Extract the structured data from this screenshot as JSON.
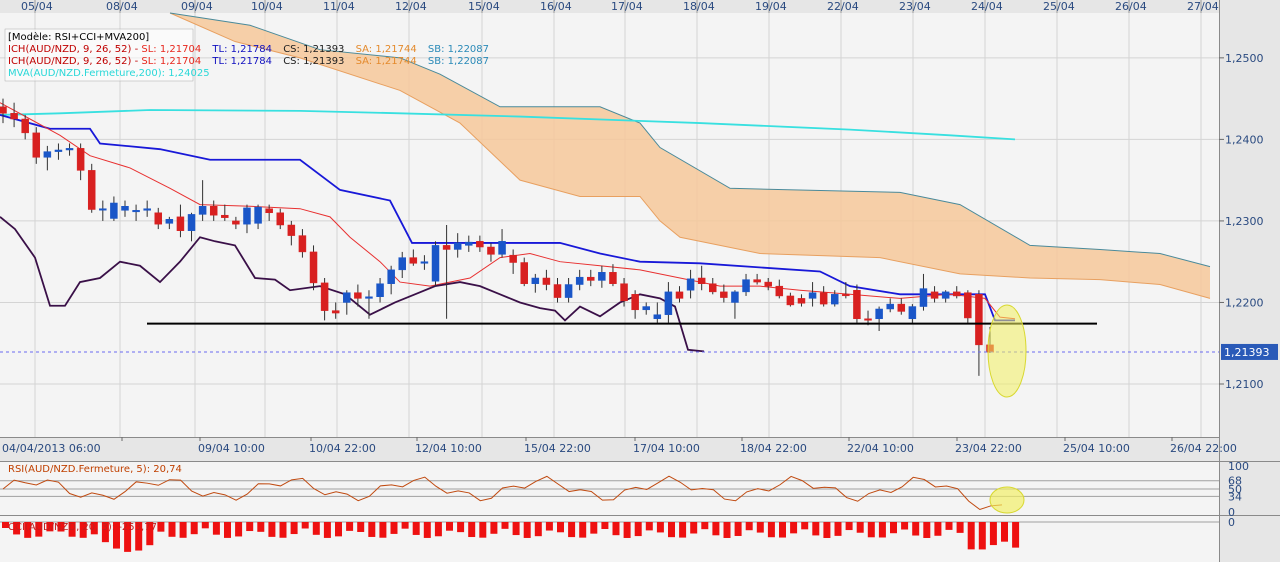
{
  "chart_data": {
    "type": "candlestick",
    "instrument": "AUD/NZD",
    "top_dates": [
      "05/04",
      "08/04",
      "09/04",
      "10/04",
      "11/04",
      "12/04",
      "15/04",
      "16/04",
      "17/04",
      "18/04",
      "19/04",
      "22/04",
      "23/04",
      "24/04",
      "25/04",
      "26/04",
      "27/04"
    ],
    "bottom_dates": [
      "04/04/2013 06:00",
      "09/04 10:00",
      "10/04 22:00",
      "12/04 10:00",
      "15/04 22:00",
      "17/04 10:00",
      "18/04 22:00",
      "22/04 10:00",
      "23/04 22:00",
      "25/04 10:00",
      "26/04 22:00"
    ],
    "price_ticks": [
      "1,2500",
      "1,2400",
      "1,2300",
      "1,2200",
      "1,2100"
    ],
    "price_range": [
      1.2035,
      1.2555
    ],
    "current_price_label": "1,21393",
    "current_price": 1.21393,
    "support_level": 1.2174,
    "legend": {
      "model": "[Modèle: RSI+CCI+MVA200]",
      "ichimoku_1": {
        "name": "ICH(AUD/NZD, 9, 26, 52)",
        "sl": "SL: 1,21704",
        "tl": "TL: 1,21784",
        "cs": "CS: 1,21393",
        "sa": "SA: 1,21744",
        "sb": "SB: 1,22087"
      },
      "ichimoku_2": {
        "name": "ICH(AUD/NZD, 9, 26, 52)",
        "sl": "SL: 1,21704",
        "tl": "TL: 1,21784",
        "cs": "CS: 1,21393",
        "sa": "SA: 1,21744",
        "sb": "SB: 1,22087"
      },
      "mva": "MVA(AUD/NZD.Fermeture,200): 1,24025"
    },
    "rsi": {
      "label": "RSI(AUD/NZD.Fermeture, 5): 20,74",
      "ticks": [
        "100",
        "68",
        "50",
        "34",
        "0"
      ],
      "levels": [
        100,
        68,
        50,
        34,
        0
      ]
    },
    "cci": {
      "label": "CCI(AUD/NZD, 20, 3): -253,77",
      "tick": "0"
    },
    "candles": [
      [
        1.244,
        1.245,
        1.242,
        1.2432
      ],
      [
        1.2432,
        1.2445,
        1.2415,
        1.2425
      ],
      [
        1.2425,
        1.243,
        1.24,
        1.2408
      ],
      [
        1.2408,
        1.2415,
        1.237,
        1.2378
      ],
      [
        1.2378,
        1.2392,
        1.2362,
        1.2385
      ],
      [
        1.2385,
        1.2395,
        1.2375,
        1.2387
      ],
      [
        1.2387,
        1.2395,
        1.238,
        1.2389
      ],
      [
        1.2389,
        1.2395,
        1.235,
        1.2362
      ],
      [
        1.2362,
        1.237,
        1.231,
        1.2314
      ],
      [
        1.2314,
        1.2325,
        1.23,
        1.2315
      ],
      [
        1.2303,
        1.233,
        1.23,
        1.2322
      ],
      [
        1.2313,
        1.2325,
        1.2305,
        1.2318
      ],
      [
        1.2312,
        1.232,
        1.23,
        1.2313
      ],
      [
        1.2313,
        1.2325,
        1.2305,
        1.2315
      ],
      [
        1.231,
        1.2316,
        1.229,
        1.2296
      ],
      [
        1.2297,
        1.2305,
        1.229,
        1.2302
      ],
      [
        1.2305,
        1.232,
        1.228,
        1.2288
      ],
      [
        1.2288,
        1.231,
        1.2275,
        1.2308
      ],
      [
        1.2308,
        1.235,
        1.23,
        1.2318
      ],
      [
        1.2318,
        1.2325,
        1.23,
        1.2307
      ],
      [
        1.2307,
        1.232,
        1.23,
        1.2304
      ],
      [
        1.23,
        1.2305,
        1.229,
        1.2296
      ],
      [
        1.2296,
        1.232,
        1.2285,
        1.2316
      ],
      [
        1.2297,
        1.232,
        1.229,
        1.2317
      ],
      [
        1.2315,
        1.232,
        1.23,
        1.231
      ],
      [
        1.231,
        1.2315,
        1.229,
        1.2295
      ],
      [
        1.2295,
        1.23,
        1.227,
        1.2282
      ],
      [
        1.2282,
        1.229,
        1.2255,
        1.2262
      ],
      [
        1.2262,
        1.227,
        1.2215,
        1.2224
      ],
      [
        1.2224,
        1.223,
        1.2178,
        1.219
      ],
      [
        1.219,
        1.22,
        1.218,
        1.2187
      ],
      [
        1.22,
        1.2215,
        1.2185,
        1.2212
      ],
      [
        1.2212,
        1.2222,
        1.2195,
        1.2205
      ],
      [
        1.2205,
        1.2215,
        1.218,
        1.2207
      ],
      [
        1.2207,
        1.223,
        1.22,
        1.2223
      ],
      [
        1.2223,
        1.2245,
        1.221,
        1.224
      ],
      [
        1.224,
        1.2262,
        1.223,
        1.2255
      ],
      [
        1.2255,
        1.2265,
        1.2245,
        1.2248
      ],
      [
        1.2248,
        1.2258,
        1.224,
        1.225
      ],
      [
        1.2226,
        1.2275,
        1.222,
        1.227
      ],
      [
        1.227,
        1.2295,
        1.218,
        1.2265
      ],
      [
        1.2265,
        1.2285,
        1.2255,
        1.2273
      ],
      [
        1.227,
        1.2282,
        1.2262,
        1.2274
      ],
      [
        1.2275,
        1.2282,
        1.2262,
        1.2268
      ],
      [
        1.2268,
        1.2273,
        1.225,
        1.2259
      ],
      [
        1.2259,
        1.229,
        1.2255,
        1.2275
      ],
      [
        1.2258,
        1.2265,
        1.2235,
        1.2249
      ],
      [
        1.2249,
        1.2255,
        1.222,
        1.2223
      ],
      [
        1.2223,
        1.2235,
        1.2212,
        1.223
      ],
      [
        1.223,
        1.224,
        1.2215,
        1.2222
      ],
      [
        1.2222,
        1.223,
        1.22,
        1.2206
      ],
      [
        1.2206,
        1.223,
        1.22,
        1.2222
      ],
      [
        1.2222,
        1.224,
        1.2215,
        1.2231
      ],
      [
        1.2231,
        1.224,
        1.222,
        1.2227
      ],
      [
        1.2227,
        1.2245,
        1.2218,
        1.2237
      ],
      [
        1.2237,
        1.2247,
        1.222,
        1.2223
      ],
      [
        1.2223,
        1.223,
        1.2195,
        1.2202
      ],
      [
        1.221,
        1.2215,
        1.218,
        1.2191
      ],
      [
        1.2191,
        1.22,
        1.2185,
        1.2195
      ],
      [
        1.218,
        1.22,
        1.2175,
        1.2185
      ],
      [
        1.2185,
        1.2225,
        1.2175,
        1.2213
      ],
      [
        1.2213,
        1.222,
        1.22,
        1.2205
      ],
      [
        1.2215,
        1.224,
        1.2205,
        1.2229
      ],
      [
        1.223,
        1.2245,
        1.2215,
        1.2223
      ],
      [
        1.2223,
        1.223,
        1.221,
        1.2213
      ],
      [
        1.2213,
        1.2222,
        1.22,
        1.2206
      ],
      [
        1.22,
        1.2215,
        1.218,
        1.2213
      ],
      [
        1.2213,
        1.2235,
        1.2208,
        1.2228
      ],
      [
        1.2228,
        1.2235,
        1.2222,
        1.2225
      ],
      [
        1.2225,
        1.223,
        1.2215,
        1.222
      ],
      [
        1.222,
        1.2228,
        1.2205,
        1.2208
      ],
      [
        1.2208,
        1.2212,
        1.2195,
        1.2197
      ],
      [
        1.2205,
        1.221,
        1.2195,
        1.2199
      ],
      [
        1.2205,
        1.2225,
        1.2195,
        1.2212
      ],
      [
        1.2212,
        1.222,
        1.2195,
        1.2198
      ],
      [
        1.2198,
        1.2215,
        1.2195,
        1.221
      ],
      [
        1.221,
        1.2225,
        1.2205,
        1.2209
      ],
      [
        1.2215,
        1.2222,
        1.2175,
        1.218
      ],
      [
        1.218,
        1.219,
        1.2172,
        1.2179
      ],
      [
        1.218,
        1.2195,
        1.2165,
        1.2192
      ],
      [
        1.2192,
        1.2205,
        1.2188,
        1.2198
      ],
      [
        1.2198,
        1.2205,
        1.2185,
        1.2189
      ],
      [
        1.218,
        1.2198,
        1.2175,
        1.2195
      ],
      [
        1.2195,
        1.2235,
        1.219,
        1.2217
      ],
      [
        1.2213,
        1.222,
        1.22,
        1.2205
      ],
      [
        1.2205,
        1.2215,
        1.22,
        1.2213
      ],
      [
        1.2213,
        1.222,
        1.2205,
        1.2208
      ],
      [
        1.2212,
        1.2215,
        1.2175,
        1.2181
      ],
      [
        1.221,
        1.2215,
        1.211,
        1.2148
      ],
      [
        1.2148,
        1.217,
        1.2138,
        1.2139
      ]
    ]
  }
}
